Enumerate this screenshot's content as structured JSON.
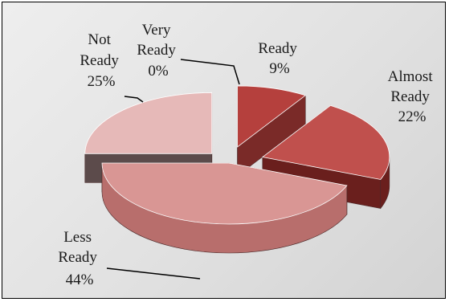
{
  "chart_data": {
    "type": "pie",
    "style": "3d-exploded",
    "slices": [
      {
        "label": "Ready",
        "percent_label": "9%",
        "value": 9,
        "colors": {
          "top": "#b5403d",
          "side": "#7a2a28"
        }
      },
      {
        "label": "Almost Ready",
        "percent_label": "22%",
        "value": 22,
        "colors": {
          "top": "#c0504d",
          "side": "#6a1f1d"
        }
      },
      {
        "label": "Less Ready",
        "percent_label": "44%",
        "value": 44,
        "colors": {
          "top": "#d99694",
          "side": "#b86e6c"
        }
      },
      {
        "label": "Not Ready",
        "percent_label": "25%",
        "value": 25,
        "colors": {
          "top": "#e6b9b8",
          "side": "#5c4b4b"
        }
      },
      {
        "label": "Very Ready",
        "percent_label": "0%",
        "value": 0,
        "colors": {
          "top": "#b5403d",
          "side": "#7a2a28"
        }
      }
    ],
    "legend": "none",
    "data_labels": "outside"
  },
  "labels": {
    "ready": [
      "Ready",
      "9%"
    ],
    "almost_ready": [
      "Almost",
      "Ready",
      "22%"
    ],
    "less_ready": [
      "Less",
      "Ready",
      "44%"
    ],
    "not_ready": [
      "Not",
      "Ready",
      "25%"
    ],
    "very_ready": [
      "Very",
      "Ready",
      "0%"
    ]
  }
}
